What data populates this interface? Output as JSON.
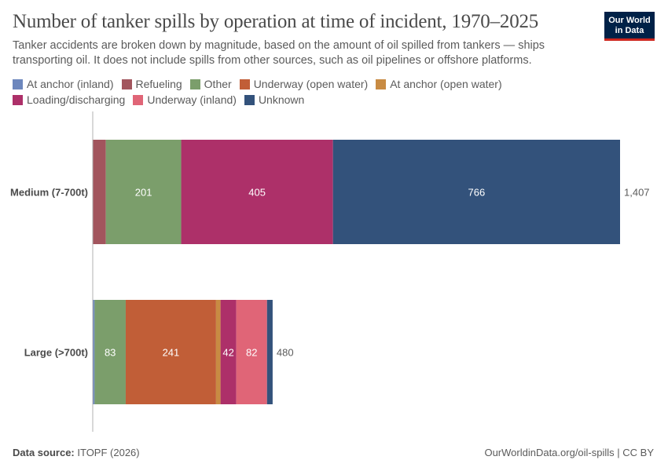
{
  "header": {
    "title": "Number of tanker spills by operation at time of incident, 1970–2025",
    "subtitle": "Tanker accidents are broken down by magnitude, based on the amount of oil spilled from tankers — ships transporting oil. It does not include spills from other sources, such as oil pipelines or offshore platforms.",
    "logo_line1": "Our World",
    "logo_line2": "in Data"
  },
  "footer": {
    "source_label": "Data source:",
    "source_value": "ITOPF (2026)",
    "url": "OurWorldinData.org/oil-spills | CC BY"
  },
  "chart_data": {
    "type": "bar",
    "orientation": "horizontal",
    "stacked": true,
    "categories": [
      "Medium (7-700t)",
      "Large (>700t)"
    ],
    "totals": [
      1407,
      480
    ],
    "totals_labels": [
      "1,407",
      "480"
    ],
    "xlim": [
      0,
      1407
    ],
    "grid": false,
    "legend_position": "top",
    "series": [
      {
        "name": "At anchor (inland)",
        "color": "#6d87bd",
        "values": [
          0,
          5
        ]
      },
      {
        "name": "Refueling",
        "color": "#a2555d",
        "values": [
          35,
          0
        ]
      },
      {
        "name": "Other",
        "color": "#7b9e6b",
        "values": [
          201,
          83
        ]
      },
      {
        "name": "Underway (open water)",
        "color": "#c15e37",
        "values": [
          0,
          241
        ]
      },
      {
        "name": "At anchor (open water)",
        "color": "#c88b43",
        "values": [
          0,
          12
        ]
      },
      {
        "name": "Loading/discharging",
        "color": "#ad3069",
        "values": [
          405,
          42
        ]
      },
      {
        "name": "Underway (inland)",
        "color": "#e06577",
        "values": [
          0,
          82
        ]
      },
      {
        "name": "Unknown",
        "color": "#33527b",
        "values": [
          766,
          15
        ]
      }
    ],
    "segment_labels": [
      [
        "",
        "",
        "201",
        "",
        "",
        "405",
        "",
        "766"
      ],
      [
        "",
        "",
        "83",
        "241",
        "",
        "42",
        "82",
        ""
      ]
    ]
  }
}
